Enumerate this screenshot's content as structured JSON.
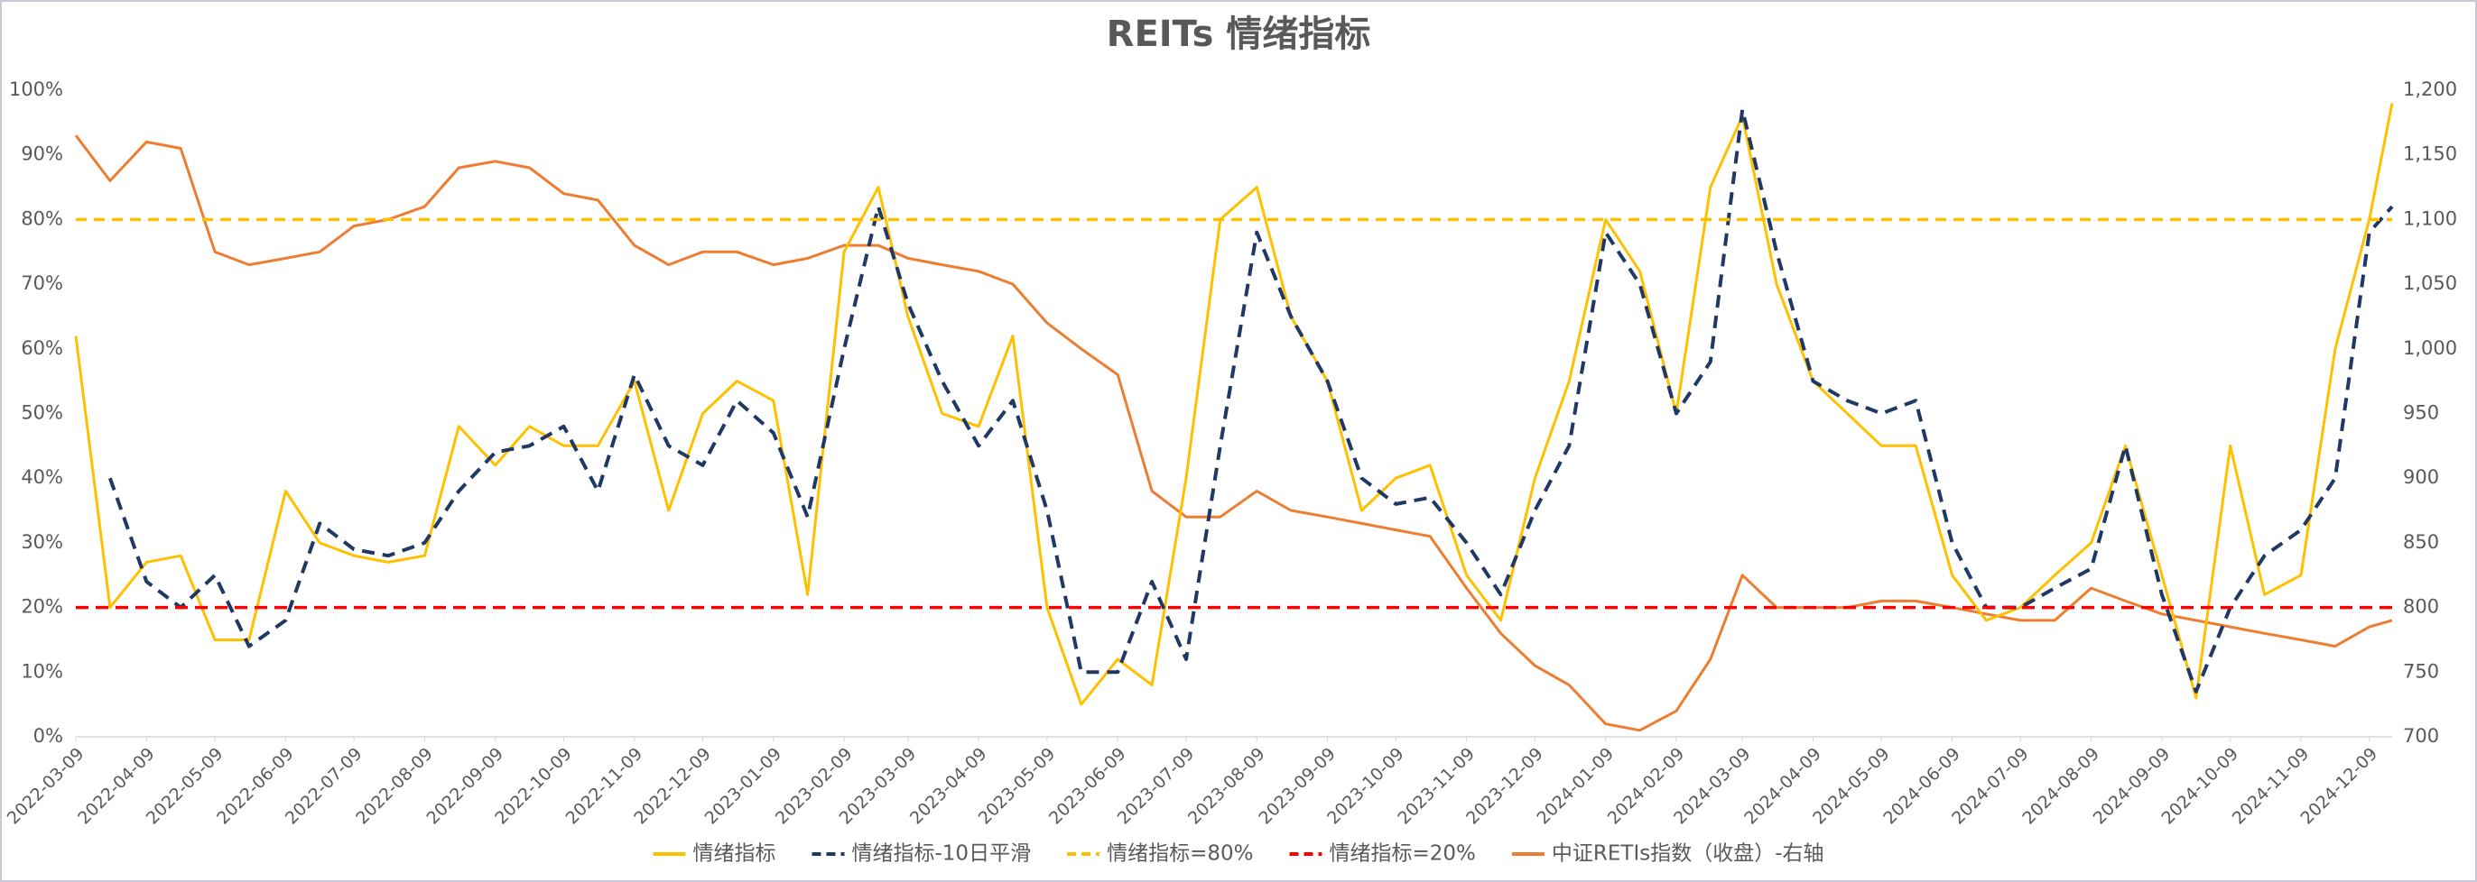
{
  "chart_data": {
    "type": "line",
    "title": "REITs 情绪指标",
    "x": [
      "2022-03-09",
      "2022-03-24",
      "2022-04-09",
      "2022-04-24",
      "2022-05-09",
      "2022-05-24",
      "2022-06-09",
      "2022-06-24",
      "2022-07-09",
      "2022-07-24",
      "2022-08-09",
      "2022-08-24",
      "2022-09-09",
      "2022-09-24",
      "2022-10-09",
      "2022-10-24",
      "2022-11-09",
      "2022-11-24",
      "2022-12-09",
      "2022-12-24",
      "2023-01-09",
      "2023-01-24",
      "2023-02-09",
      "2023-02-24",
      "2023-03-09",
      "2023-03-24",
      "2023-04-09",
      "2023-04-24",
      "2023-05-09",
      "2023-05-24",
      "2023-06-09",
      "2023-06-24",
      "2023-07-09",
      "2023-07-24",
      "2023-08-09",
      "2023-08-24",
      "2023-09-09",
      "2023-09-24",
      "2023-10-09",
      "2023-10-24",
      "2023-11-09",
      "2023-11-24",
      "2023-12-09",
      "2023-12-24",
      "2024-01-09",
      "2024-01-24",
      "2024-02-09",
      "2024-02-24",
      "2024-03-09",
      "2024-03-24",
      "2024-04-09",
      "2024-04-24",
      "2024-05-09",
      "2024-05-24",
      "2024-06-09",
      "2024-06-24",
      "2024-07-09",
      "2024-07-24",
      "2024-08-09",
      "2024-08-24",
      "2024-09-09",
      "2024-09-24",
      "2024-10-09",
      "2024-10-24",
      "2024-11-09",
      "2024-11-24",
      "2024-12-09",
      "2024-12-19"
    ],
    "series": [
      {
        "name": "情绪指标",
        "color": "#FFC000",
        "dash": "none",
        "values": [
          62,
          20,
          27,
          28,
          15,
          15,
          38,
          30,
          28,
          27,
          28,
          48,
          42,
          48,
          45,
          45,
          55,
          35,
          50,
          55,
          52,
          22,
          75,
          85,
          65,
          50,
          48,
          62,
          20,
          5,
          12,
          8,
          40,
          80,
          85,
          65,
          55,
          35,
          40,
          42,
          25,
          18,
          40,
          55,
          80,
          72,
          50,
          85,
          96,
          70,
          55,
          50,
          45,
          45,
          25,
          18,
          20,
          25,
          30,
          45,
          25,
          6,
          45,
          22,
          25,
          60,
          80,
          98
        ]
      },
      {
        "name": "情绪指标-10日平滑",
        "color": "#1F3864",
        "dash": "14 9",
        "values": [
          null,
          40,
          24,
          20,
          25,
          14,
          18,
          33,
          29,
          28,
          30,
          38,
          44,
          45,
          48,
          38,
          56,
          45,
          42,
          52,
          47,
          34,
          60,
          82,
          67,
          55,
          45,
          52,
          35,
          10,
          10,
          24,
          12,
          45,
          78,
          65,
          55,
          40,
          36,
          37,
          30,
          22,
          35,
          45,
          78,
          70,
          50,
          58,
          97,
          75,
          55,
          52,
          50,
          52,
          30,
          20,
          20,
          23,
          26,
          45,
          22,
          7,
          20,
          28,
          32,
          40,
          78,
          82
        ]
      },
      {
        "name": "中证RETIs指数（收盘）-右轴",
        "color": "#ED7D31",
        "dash": "none",
        "axis": "y2",
        "values": [
          1165,
          1130,
          1160,
          1155,
          1075,
          1065,
          1070,
          1075,
          1095,
          1100,
          1110,
          1140,
          1145,
          1140,
          1120,
          1115,
          1080,
          1065,
          1075,
          1075,
          1065,
          1070,
          1080,
          1080,
          1070,
          1065,
          1060,
          1050,
          1020,
          1000,
          980,
          890,
          870,
          870,
          890,
          875,
          870,
          865,
          860,
          855,
          815,
          780,
          755,
          740,
          710,
          705,
          720,
          760,
          825,
          800,
          800,
          800,
          805,
          805,
          800,
          795,
          790,
          790,
          815,
          805,
          795,
          790,
          785,
          780,
          775,
          770,
          785,
          790
        ]
      }
    ],
    "reference_lines": [
      {
        "name": "情绪指标=80%",
        "color": "#FFC000",
        "dash": "12 8",
        "value": 80
      },
      {
        "name": "情绪指标=20%",
        "color": "#FF0000",
        "dash": "14 8",
        "value": 20
      }
    ],
    "xlim": [
      "2022-03-09",
      "2024-12-19"
    ],
    "xticks": [
      "2022-03-09",
      "2022-04-09",
      "2022-05-09",
      "2022-06-09",
      "2022-07-09",
      "2022-08-09",
      "2022-09-09",
      "2022-10-09",
      "2022-11-09",
      "2022-12-09",
      "2023-01-09",
      "2023-02-09",
      "2023-03-09",
      "2023-04-09",
      "2023-05-09",
      "2023-06-09",
      "2023-07-09",
      "2023-08-09",
      "2023-09-09",
      "2023-10-09",
      "2023-11-09",
      "2023-12-09",
      "2024-01-09",
      "2024-02-09",
      "2024-03-09",
      "2024-04-09",
      "2024-05-09",
      "2024-06-09",
      "2024-07-09",
      "2024-08-09",
      "2024-09-09",
      "2024-10-09",
      "2024-11-09",
      "2024-12-09"
    ],
    "ylim": [
      0,
      100
    ],
    "yticks": [
      {
        "value": 0,
        "label": "0%"
      },
      {
        "value": 10,
        "label": "10%"
      },
      {
        "value": 20,
        "label": "20%"
      },
      {
        "value": 30,
        "label": "30%"
      },
      {
        "value": 40,
        "label": "40%"
      },
      {
        "value": 50,
        "label": "50%"
      },
      {
        "value": 60,
        "label": "60%"
      },
      {
        "value": 70,
        "label": "70%"
      },
      {
        "value": 80,
        "label": "80%"
      },
      {
        "value": 90,
        "label": "90%"
      },
      {
        "value": 100,
        "label": "100%"
      }
    ],
    "y2lim": [
      700,
      1200
    ],
    "y2ticks": [
      700,
      750,
      800,
      850,
      900,
      950,
      {
        "value": 1000,
        "label": "1,000"
      },
      {
        "value": 1050,
        "label": "1,050"
      },
      {
        "value": 1100,
        "label": "1,100"
      },
      {
        "value": 1150,
        "label": "1,150"
      },
      {
        "value": 1200,
        "label": "1,200"
      }
    ],
    "legend": "bottom"
  }
}
